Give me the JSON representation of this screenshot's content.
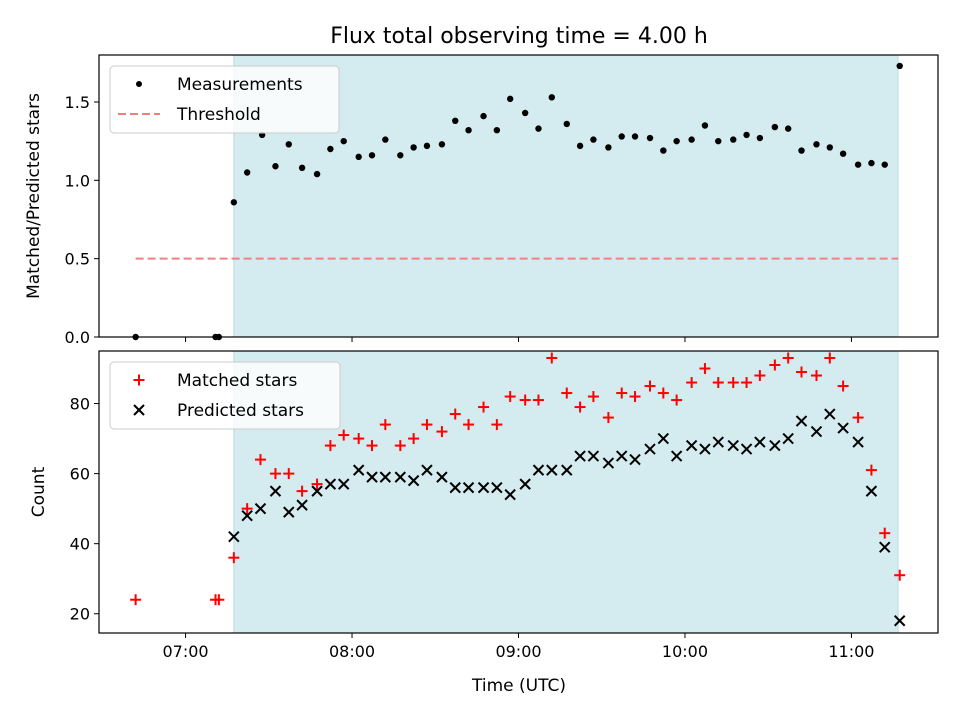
{
  "title": "Flux total observing time = 4.00 h",
  "xlabel": "Time (UTC)",
  "x_ticks": [
    "07:00",
    "08:00",
    "09:00",
    "10:00",
    "11:00"
  ],
  "x_tick_hours": [
    7,
    8,
    9,
    10,
    11
  ],
  "xlim_hours": [
    6.48,
    11.52
  ],
  "shaded_interval_hours": [
    7.29,
    11.28
  ],
  "colors": {
    "shade": "#d4ebf0",
    "measurement": "#000000",
    "threshold": "#f08080",
    "matched": "#ff0000",
    "predicted": "#000000"
  },
  "chart_data": [
    {
      "type": "scatter",
      "ylabel": "Matched/Predicted stars",
      "ylim": [
        0,
        1.8
      ],
      "y_ticks": [
        "0.0",
        "0.5",
        "1.0",
        "1.5"
      ],
      "y_tick_values": [
        0,
        0.5,
        1.0,
        1.5
      ],
      "legend_position": "top-left",
      "series": [
        {
          "name": "Measurements",
          "x": [
            6.7,
            7.18,
            7.2,
            7.29,
            7.37,
            7.46,
            7.54,
            7.62,
            7.7,
            7.79,
            7.87,
            7.95,
            8.04,
            8.12,
            8.2,
            8.29,
            8.37,
            8.45,
            8.54,
            8.62,
            8.7,
            8.79,
            8.87,
            8.95,
            9.04,
            9.12,
            9.2,
            9.29,
            9.37,
            9.45,
            9.54,
            9.62,
            9.7,
            9.79,
            9.87,
            9.95,
            10.04,
            10.12,
            10.2,
            10.29,
            10.37,
            10.45,
            10.54,
            10.62,
            10.7,
            10.79,
            10.87,
            10.95,
            11.04,
            11.12,
            11.2,
            11.29
          ],
          "values": [
            0.0,
            0.0,
            0.0,
            0.86,
            1.05,
            1.29,
            1.09,
            1.23,
            1.08,
            1.04,
            1.2,
            1.25,
            1.15,
            1.16,
            1.26,
            1.16,
            1.21,
            1.22,
            1.23,
            1.38,
            1.32,
            1.41,
            1.32,
            1.52,
            1.43,
            1.33,
            1.53,
            1.36,
            1.22,
            1.26,
            1.21,
            1.28,
            1.28,
            1.27,
            1.19,
            1.25,
            1.26,
            1.35,
            1.25,
            1.26,
            1.29,
            1.27,
            1.34,
            1.33,
            1.19,
            1.23,
            1.21,
            1.17,
            1.1,
            1.11,
            1.1,
            1.73
          ]
        },
        {
          "name": "Threshold",
          "x": [
            6.7,
            11.28
          ],
          "values": [
            0.5,
            0.5
          ]
        }
      ]
    },
    {
      "type": "scatter",
      "ylabel": "Count",
      "ylim": [
        14.5,
        95
      ],
      "y_ticks": [
        "20",
        "40",
        "60",
        "80"
      ],
      "y_tick_values": [
        20,
        40,
        60,
        80
      ],
      "legend_position": "top-left",
      "series": [
        {
          "name": "Matched stars",
          "x": [
            6.7,
            7.18,
            7.2,
            7.29,
            7.37,
            7.45,
            7.54,
            7.62,
            7.7,
            7.79,
            7.87,
            7.95,
            8.04,
            8.12,
            8.2,
            8.29,
            8.37,
            8.45,
            8.54,
            8.62,
            8.7,
            8.79,
            8.87,
            8.95,
            9.04,
            9.12,
            9.2,
            9.29,
            9.37,
            9.45,
            9.54,
            9.62,
            9.7,
            9.79,
            9.87,
            9.95,
            10.04,
            10.12,
            10.2,
            10.29,
            10.37,
            10.45,
            10.54,
            10.62,
            10.7,
            10.79,
            10.87,
            10.95,
            11.04,
            11.12,
            11.2,
            11.29
          ],
          "values": [
            24,
            24,
            24,
            36,
            50,
            64,
            60,
            60,
            55,
            57,
            68,
            71,
            70,
            68,
            74,
            68,
            70,
            74,
            72,
            77,
            74,
            79,
            74,
            82,
            81,
            81,
            93,
            83,
            79,
            82,
            76,
            83,
            82,
            85,
            83,
            81,
            86,
            90,
            86,
            86,
            86,
            88,
            91,
            93,
            89,
            88,
            93,
            85,
            76,
            61,
            43,
            31
          ]
        },
        {
          "name": "Predicted stars",
          "x": [
            7.29,
            7.37,
            7.45,
            7.54,
            7.62,
            7.7,
            7.79,
            7.87,
            7.95,
            8.04,
            8.12,
            8.2,
            8.29,
            8.37,
            8.45,
            8.54,
            8.62,
            8.7,
            8.79,
            8.87,
            8.95,
            9.04,
            9.12,
            9.2,
            9.29,
            9.37,
            9.45,
            9.54,
            9.62,
            9.7,
            9.79,
            9.87,
            9.95,
            10.04,
            10.12,
            10.2,
            10.29,
            10.37,
            10.45,
            10.54,
            10.62,
            10.7,
            10.79,
            10.87,
            10.95,
            11.04,
            11.12,
            11.2,
            11.29
          ],
          "values": [
            42,
            48,
            50,
            55,
            49,
            51,
            55,
            57,
            57,
            61,
            59,
            59,
            59,
            58,
            61,
            59,
            56,
            56,
            56,
            56,
            54,
            57,
            61,
            61,
            61,
            65,
            65,
            63,
            65,
            64,
            67,
            70,
            65,
            68,
            67,
            69,
            68,
            67,
            69,
            68,
            70,
            75,
            72,
            77,
            73,
            69,
            55,
            39,
            18
          ]
        }
      ]
    }
  ]
}
